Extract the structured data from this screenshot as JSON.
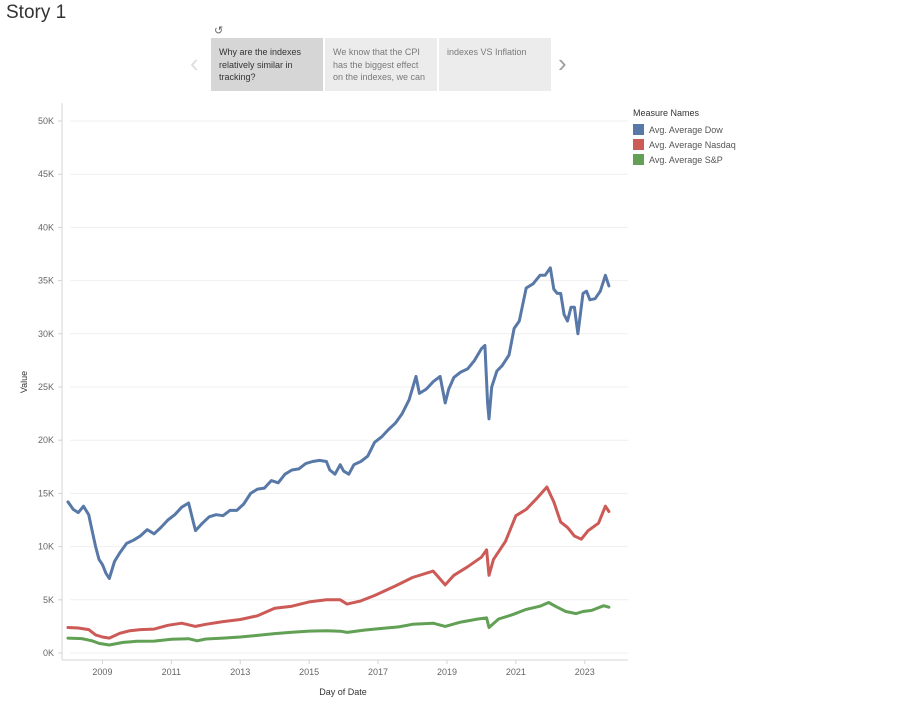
{
  "story": {
    "title": "Story 1",
    "points": [
      "Why are the indexes relatively similar in tracking?",
      "We know that the CPI has the biggest effect on the indexes, we can",
      "indexes VS Inflation"
    ]
  },
  "icons": {
    "prev": "chevron-left-icon",
    "next": "chevron-right-icon",
    "revert": "revert-icon"
  },
  "legend": {
    "title": "Measure Names",
    "items": [
      {
        "label": "Avg. Average Dow",
        "color": "#5878a8"
      },
      {
        "label": "Avg. Average Nasdaq",
        "color": "#cc5a56"
      },
      {
        "label": "Avg. Average S&P",
        "color": "#61a055"
      }
    ]
  },
  "chart_data": {
    "type": "line",
    "xlabel": "Day of Date",
    "ylabel": "Value",
    "xlim": [
      2008.0,
      2024.4
    ],
    "ylim": [
      0,
      50000
    ],
    "x_ticks": [
      2009,
      2011,
      2013,
      2015,
      2017,
      2019,
      2021,
      2023
    ],
    "x_tick_labels": [
      "2009",
      "2011",
      "2013",
      "2015",
      "2017",
      "2019",
      "2021",
      "2023"
    ],
    "y_ticks": [
      0,
      5000,
      10000,
      15000,
      20000,
      25000,
      30000,
      35000,
      40000,
      45000,
      50000
    ],
    "y_tick_labels": [
      "0K",
      "5K",
      "10K",
      "15K",
      "20K",
      "25K",
      "30K",
      "35K",
      "40K",
      "45K",
      "50K"
    ],
    "grid": true,
    "legend_position": "right",
    "series": [
      {
        "name": "Avg. Average Dow",
        "color": "#5878a8",
        "x": [
          2008.0,
          2008.15,
          2008.3,
          2008.45,
          2008.6,
          2008.7,
          2008.8,
          2008.9,
          2009.0,
          2009.1,
          2009.2,
          2009.35,
          2009.5,
          2009.7,
          2009.9,
          2010.1,
          2010.3,
          2010.5,
          2010.7,
          2010.9,
          2011.1,
          2011.3,
          2011.5,
          2011.6,
          2011.7,
          2011.9,
          2012.1,
          2012.3,
          2012.5,
          2012.7,
          2012.9,
          2013.1,
          2013.3,
          2013.5,
          2013.7,
          2013.9,
          2014.1,
          2014.3,
          2014.5,
          2014.7,
          2014.9,
          2015.1,
          2015.3,
          2015.5,
          2015.6,
          2015.75,
          2015.9,
          2016.0,
          2016.15,
          2016.3,
          2016.5,
          2016.7,
          2016.9,
          2017.1,
          2017.3,
          2017.5,
          2017.7,
          2017.9,
          2018.1,
          2018.2,
          2018.4,
          2018.6,
          2018.8,
          2018.95,
          2019.05,
          2019.2,
          2019.4,
          2019.6,
          2019.8,
          2020.0,
          2020.1,
          2020.18,
          2020.22,
          2020.3,
          2020.45,
          2020.6,
          2020.8,
          2020.95,
          2021.1,
          2021.3,
          2021.5,
          2021.7,
          2021.85,
          2022.0,
          2022.1,
          2022.2,
          2022.3,
          2022.4,
          2022.5,
          2022.6,
          2022.7,
          2022.8,
          2022.95,
          2023.05,
          2023.15,
          2023.3,
          2023.45,
          2023.6,
          2023.7
        ],
        "values": [
          14200,
          13500,
          13200,
          13800,
          13000,
          11500,
          10000,
          8800,
          8300,
          7500,
          7000,
          8600,
          9400,
          10300,
          10600,
          11000,
          11600,
          11200,
          11800,
          12500,
          13000,
          13700,
          14100,
          12800,
          11500,
          12200,
          12800,
          13000,
          12900,
          13400,
          13400,
          14000,
          15000,
          15400,
          15500,
          16200,
          16000,
          16800,
          17200,
          17300,
          17800,
          18000,
          18100,
          18000,
          17200,
          16800,
          17700,
          17100,
          16800,
          17700,
          18000,
          18500,
          19800,
          20300,
          21000,
          21600,
          22500,
          23800,
          26000,
          24400,
          24800,
          25500,
          26000,
          23500,
          24800,
          25900,
          26400,
          26700,
          27500,
          28600,
          28900,
          23500,
          22000,
          25000,
          26500,
          27000,
          28000,
          30500,
          31200,
          34300,
          34700,
          35500,
          35500,
          36200,
          34200,
          33800,
          33800,
          31800,
          31200,
          32500,
          32500,
          30000,
          33800,
          34000,
          33200,
          33300,
          34000,
          35500,
          34500
        ]
      },
      {
        "name": "Avg. Average Nasdaq",
        "color": "#cc5a56",
        "x": [
          2008.0,
          2008.3,
          2008.6,
          2008.8,
          2009.0,
          2009.2,
          2009.5,
          2009.8,
          2010.1,
          2010.5,
          2010.9,
          2011.3,
          2011.7,
          2012.0,
          2012.5,
          2013.0,
          2013.5,
          2014.0,
          2014.5,
          2015.0,
          2015.5,
          2015.9,
          2016.1,
          2016.5,
          2016.9,
          2017.5,
          2018.0,
          2018.6,
          2018.95,
          2019.2,
          2019.6,
          2020.0,
          2020.15,
          2020.22,
          2020.35,
          2020.7,
          2021.0,
          2021.3,
          2021.6,
          2021.9,
          2022.1,
          2022.3,
          2022.5,
          2022.7,
          2022.9,
          2023.1,
          2023.4,
          2023.6,
          2023.7
        ],
        "values": [
          2400,
          2350,
          2200,
          1700,
          1500,
          1400,
          1850,
          2100,
          2200,
          2250,
          2600,
          2800,
          2500,
          2700,
          2950,
          3150,
          3500,
          4200,
          4400,
          4800,
          5000,
          5000,
          4600,
          4900,
          5400,
          6300,
          7100,
          7700,
          6400,
          7300,
          8100,
          9000,
          9700,
          7300,
          8800,
          10500,
          12900,
          13500,
          14500,
          15600,
          14200,
          12300,
          11800,
          11000,
          10700,
          11500,
          12200,
          13800,
          13300
        ]
      },
      {
        "name": "Avg. Average S&P",
        "color": "#61a055",
        "x": [
          2008.0,
          2008.4,
          2008.7,
          2008.9,
          2009.2,
          2009.6,
          2010.0,
          2010.5,
          2011.0,
          2011.5,
          2011.75,
          2012.0,
          2012.5,
          2013.0,
          2013.5,
          2014.0,
          2014.5,
          2015.0,
          2015.5,
          2015.9,
          2016.1,
          2016.6,
          2017.0,
          2017.6,
          2018.0,
          2018.6,
          2018.95,
          2019.4,
          2019.9,
          2020.15,
          2020.22,
          2020.5,
          2020.9,
          2021.3,
          2021.7,
          2021.95,
          2022.2,
          2022.45,
          2022.75,
          2022.95,
          2023.2,
          2023.55,
          2023.7
        ],
        "values": [
          1400,
          1350,
          1150,
          900,
          750,
          1000,
          1100,
          1120,
          1300,
          1340,
          1150,
          1320,
          1400,
          1500,
          1650,
          1820,
          1950,
          2060,
          2090,
          2050,
          1940,
          2150,
          2270,
          2450,
          2700,
          2800,
          2500,
          2900,
          3200,
          3300,
          2400,
          3200,
          3600,
          4100,
          4400,
          4750,
          4300,
          3900,
          3700,
          3900,
          4000,
          4450,
          4300
        ]
      }
    ]
  }
}
